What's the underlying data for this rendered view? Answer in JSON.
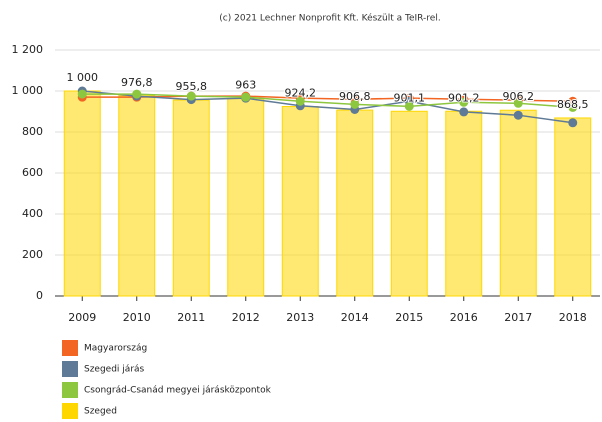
{
  "chart_data": {
    "type": "bar",
    "title": "(c) 2021 Lechner Nonprofit Kft. Készült a TeIR-rel.",
    "categories": [
      "2009",
      "2010",
      "2011",
      "2012",
      "2013",
      "2014",
      "2015",
      "2016",
      "2017",
      "2018"
    ],
    "ylim": [
      0,
      1200
    ],
    "yticks": [
      0,
      200,
      400,
      600,
      800,
      {
        "value": 1000,
        "label": "1 000"
      },
      {
        "value": 1200,
        "label": "1 200"
      }
    ],
    "grid": true,
    "series": [
      {
        "name": "Magyarország",
        "color": "#f26522",
        "type": "line",
        "values": [
          970,
          970,
          975,
          975,
          965,
          960,
          965,
          960,
          955,
          950
        ]
      },
      {
        "name": "Szegedi járás",
        "color": "#5f7a96",
        "type": "line",
        "values": [
          1000,
          975,
          958,
          965,
          928,
          910,
          950,
          898,
          882,
          845
        ]
      },
      {
        "name": "Csongrád-Csanád megyei járásközpontok",
        "color": "#8dc63f",
        "type": "line",
        "values": [
          985,
          985,
          975,
          970,
          950,
          935,
          925,
          945,
          940,
          920
        ]
      },
      {
        "name": "Szeged",
        "color": "#ffd700",
        "type": "bar",
        "values": [
          1000,
          976.8,
          955.8,
          963,
          924.2,
          906.8,
          901.1,
          901.2,
          906.2,
          868.5
        ],
        "value_labels": [
          "1 000",
          "976,8",
          "955,8",
          "963",
          "924,2",
          "906,8",
          "901,1",
          "901,2",
          "906,2",
          "868,5"
        ]
      }
    ]
  }
}
